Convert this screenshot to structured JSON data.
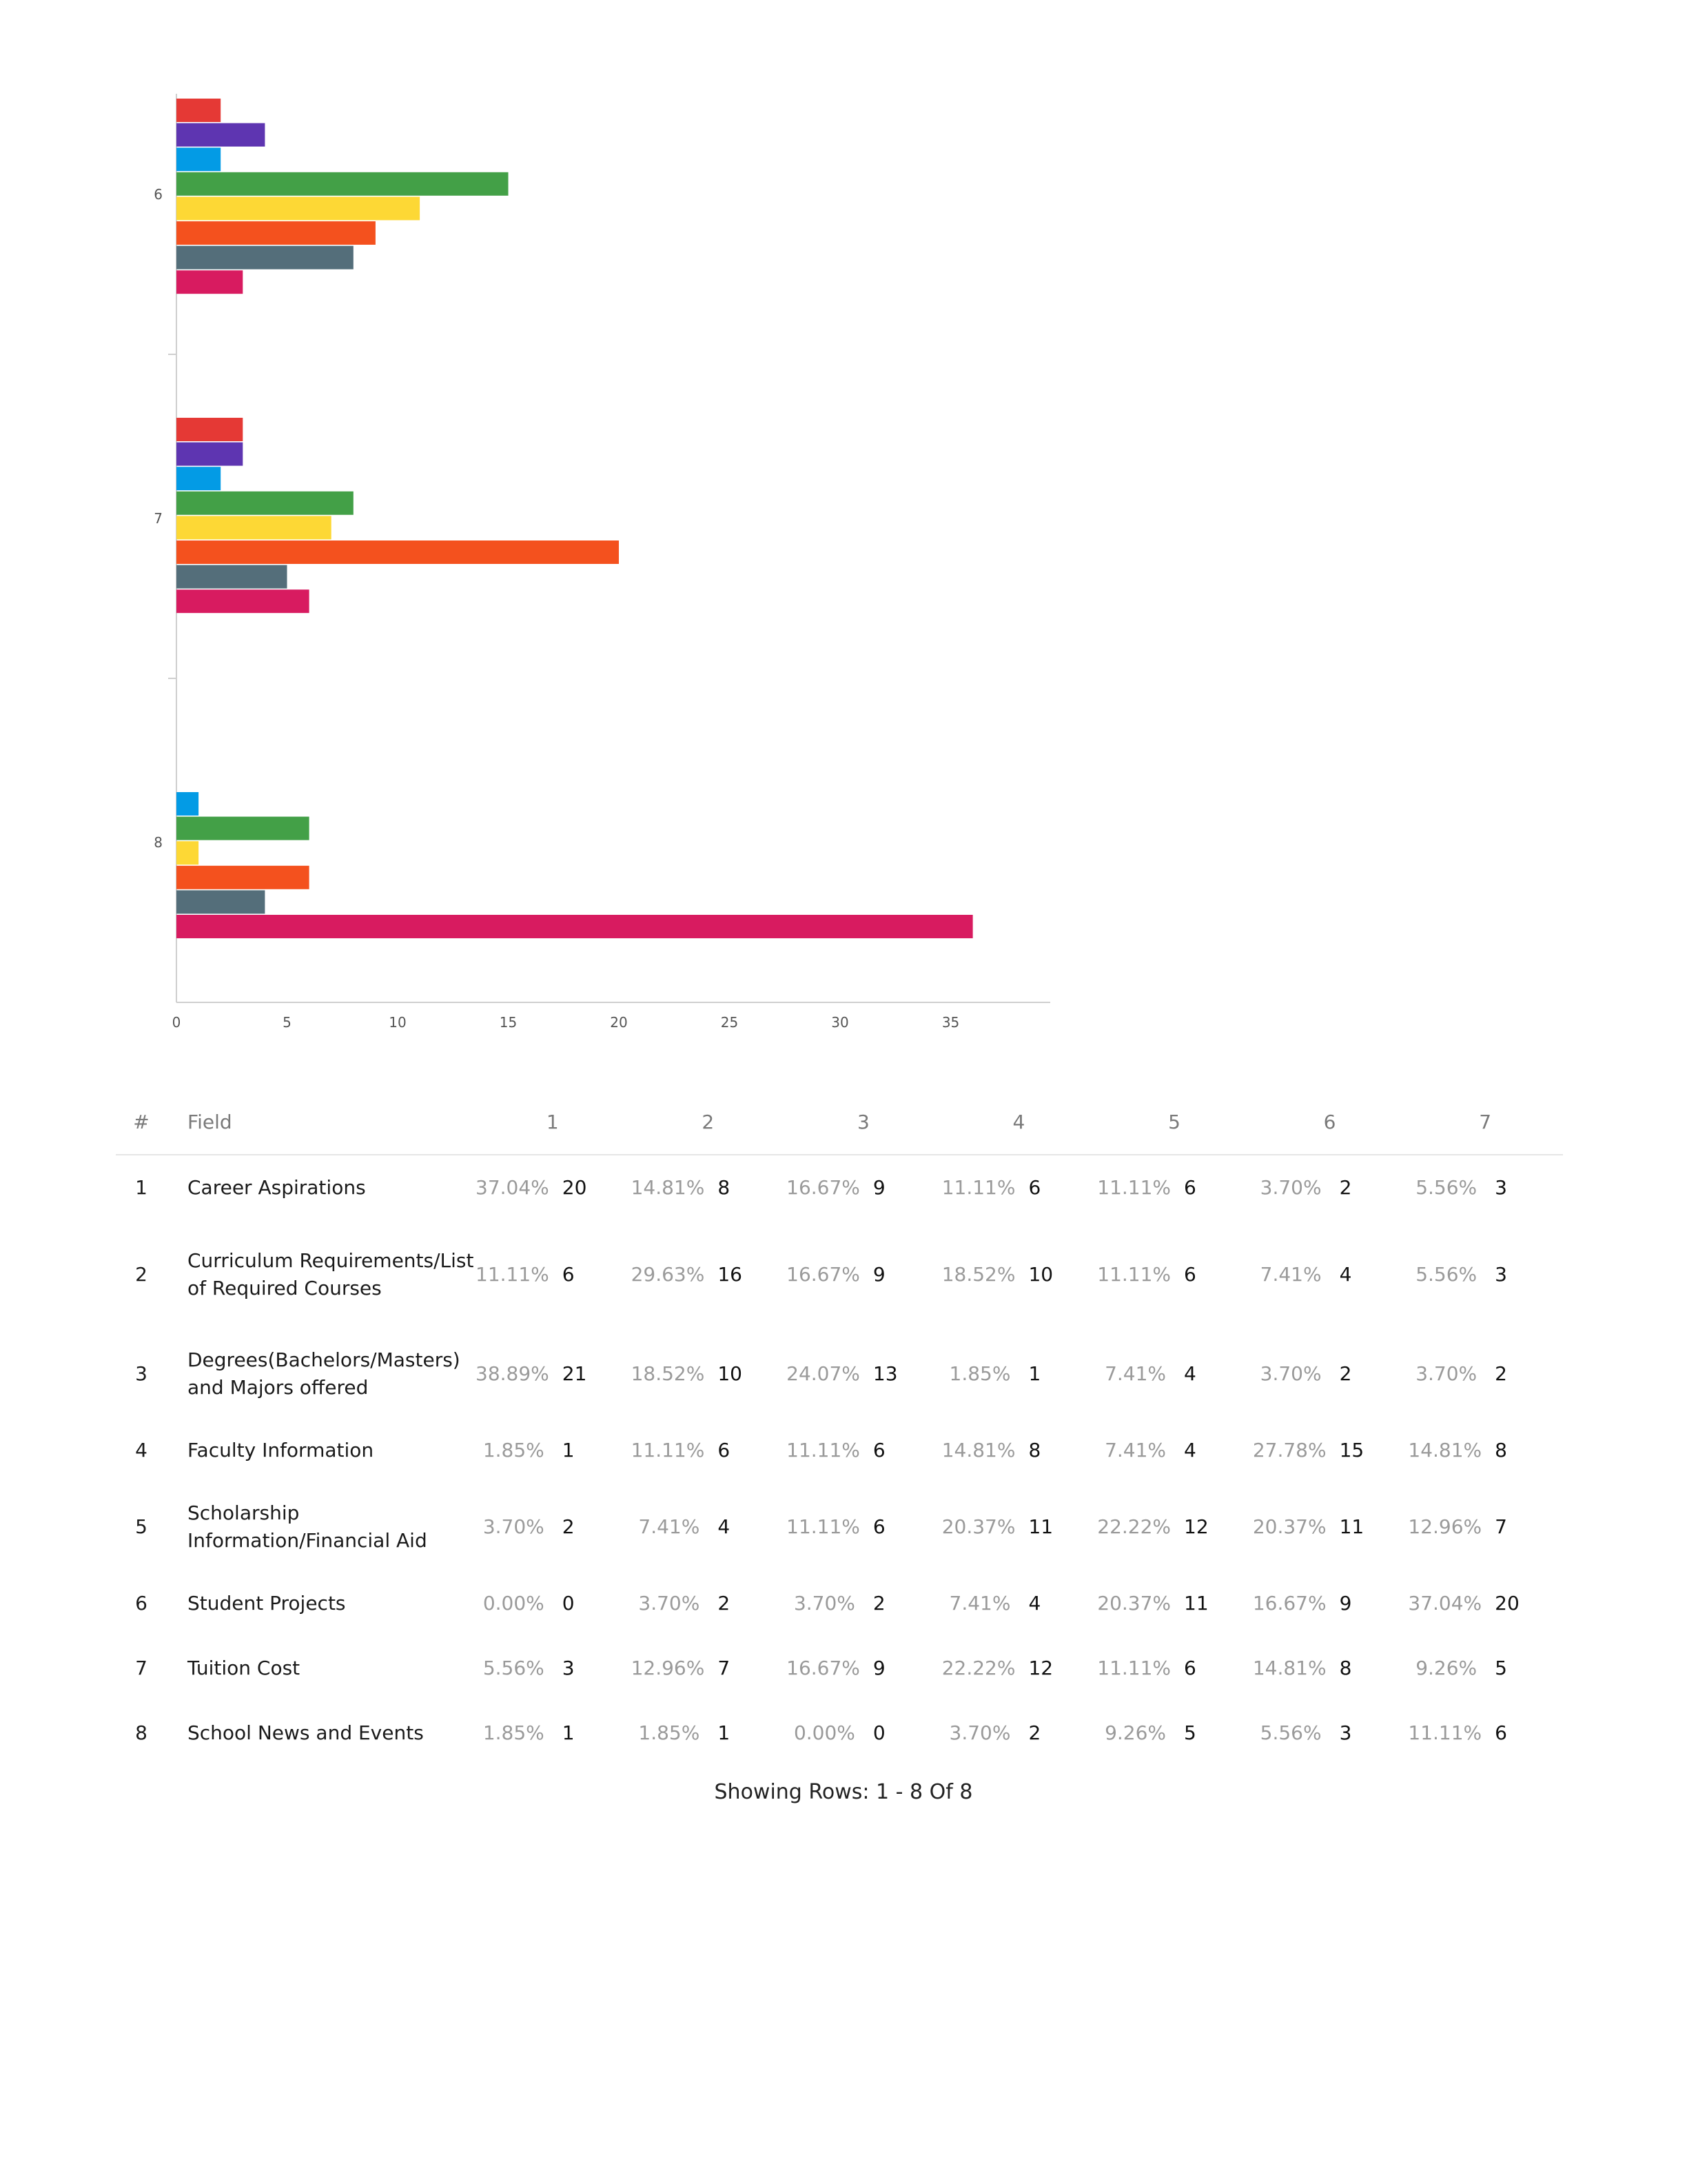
{
  "chart_data": {
    "type": "bar",
    "orientation": "horizontal",
    "categories": [
      "6",
      "7",
      "8"
    ],
    "series_colors": [
      "#e53935",
      "#5e35b1",
      "#039be5",
      "#43a047",
      "#fdd835",
      "#f4511e",
      "#546e7a",
      "#d81b60"
    ],
    "series": [
      {
        "values": [
          2,
          3,
          0
        ]
      },
      {
        "values": [
          4,
          3,
          0
        ]
      },
      {
        "values": [
          2,
          2,
          1
        ]
      },
      {
        "values": [
          15,
          8,
          6
        ]
      },
      {
        "values": [
          11,
          7,
          1
        ]
      },
      {
        "values": [
          9,
          20,
          6
        ]
      },
      {
        "values": [
          8,
          5,
          4
        ]
      },
      {
        "values": [
          3,
          6,
          36
        ]
      }
    ],
    "x_ticks": [
      "0",
      "5",
      "10",
      "15",
      "20",
      "25",
      "30",
      "35"
    ],
    "xlim": [
      0,
      39.5
    ],
    "grid": false
  },
  "table": {
    "headers": {
      "num": "#",
      "field": "Field",
      "groups": [
        "1",
        "2",
        "3",
        "4",
        "5",
        "6",
        "7"
      ]
    },
    "rows": [
      {
        "num": "1",
        "field": "Career Aspirations",
        "cells": [
          [
            "37.04%",
            "20"
          ],
          [
            "14.81%",
            "8"
          ],
          [
            "16.67%",
            "9"
          ],
          [
            "11.11%",
            "6"
          ],
          [
            "11.11%",
            "6"
          ],
          [
            "3.70%",
            "2"
          ],
          [
            "5.56%",
            "3"
          ]
        ]
      },
      {
        "num": "2",
        "field": "Curriculum Requirements/List of Required Courses",
        "cells": [
          [
            "11.11%",
            "6"
          ],
          [
            "29.63%",
            "16"
          ],
          [
            "16.67%",
            "9"
          ],
          [
            "18.52%",
            "10"
          ],
          [
            "11.11%",
            "6"
          ],
          [
            "7.41%",
            "4"
          ],
          [
            "5.56%",
            "3"
          ]
        ]
      },
      {
        "num": "3",
        "field": "Degrees(Bachelors/Masters) and Majors offered",
        "cells": [
          [
            "38.89%",
            "21"
          ],
          [
            "18.52%",
            "10"
          ],
          [
            "24.07%",
            "13"
          ],
          [
            "1.85%",
            "1"
          ],
          [
            "7.41%",
            "4"
          ],
          [
            "3.70%",
            "2"
          ],
          [
            "3.70%",
            "2"
          ]
        ]
      },
      {
        "num": "4",
        "field": "Faculty Information",
        "cells": [
          [
            "1.85%",
            "1"
          ],
          [
            "11.11%",
            "6"
          ],
          [
            "11.11%",
            "6"
          ],
          [
            "14.81%",
            "8"
          ],
          [
            "7.41%",
            "4"
          ],
          [
            "27.78%",
            "15"
          ],
          [
            "14.81%",
            "8"
          ]
        ]
      },
      {
        "num": "5",
        "field": "Scholarship Information/Financial Aid",
        "cells": [
          [
            "3.70%",
            "2"
          ],
          [
            "7.41%",
            "4"
          ],
          [
            "11.11%",
            "6"
          ],
          [
            "20.37%",
            "11"
          ],
          [
            "22.22%",
            "12"
          ],
          [
            "20.37%",
            "11"
          ],
          [
            "12.96%",
            "7"
          ]
        ]
      },
      {
        "num": "6",
        "field": "Student Projects",
        "cells": [
          [
            "0.00%",
            "0"
          ],
          [
            "3.70%",
            "2"
          ],
          [
            "3.70%",
            "2"
          ],
          [
            "7.41%",
            "4"
          ],
          [
            "20.37%",
            "11"
          ],
          [
            "16.67%",
            "9"
          ],
          [
            "37.04%",
            "20"
          ]
        ]
      },
      {
        "num": "7",
        "field": "Tuition Cost",
        "cells": [
          [
            "5.56%",
            "3"
          ],
          [
            "12.96%",
            "7"
          ],
          [
            "16.67%",
            "9"
          ],
          [
            "22.22%",
            "12"
          ],
          [
            "11.11%",
            "6"
          ],
          [
            "14.81%",
            "8"
          ],
          [
            "9.26%",
            "5"
          ]
        ]
      },
      {
        "num": "8",
        "field": "School News and Events",
        "cells": [
          [
            "1.85%",
            "1"
          ],
          [
            "1.85%",
            "1"
          ],
          [
            "0.00%",
            "0"
          ],
          [
            "3.70%",
            "2"
          ],
          [
            "9.26%",
            "5"
          ],
          [
            "5.56%",
            "3"
          ],
          [
            "11.11%",
            "6"
          ]
        ]
      }
    ]
  },
  "footer": "Showing Rows: 1 - 8 Of 8"
}
